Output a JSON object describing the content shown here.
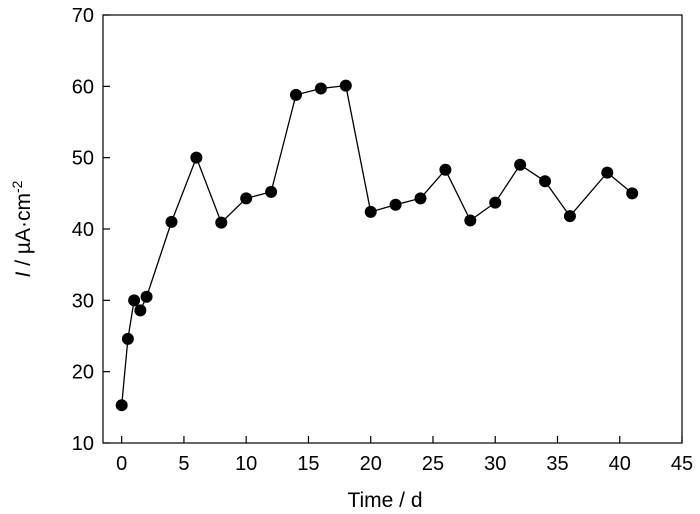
{
  "chart_data": {
    "type": "scatter",
    "title": "",
    "xlabel": "Time / d",
    "ylabel": {
      "symbol": "I",
      "rest": " / µA·cm",
      "sup": "-2"
    },
    "xlim": [
      -1.5,
      45
    ],
    "ylim": [
      10,
      70
    ],
    "xticks": [
      0,
      5,
      10,
      15,
      20,
      25,
      30,
      35,
      40,
      45
    ],
    "yticks": [
      10,
      20,
      30,
      40,
      50,
      60,
      70
    ],
    "grid": false,
    "legend": "none",
    "colors": {
      "marker": "#000000",
      "line": "#000000"
    },
    "series": [
      {
        "x": [
          0,
          0.5,
          1,
          1.5,
          2,
          4,
          6,
          8,
          10,
          12,
          14,
          16,
          18,
          20,
          22,
          24,
          26,
          28,
          30,
          32,
          34,
          36,
          39,
          41
        ],
        "y": [
          15.3,
          24.6,
          30.0,
          28.6,
          30.5,
          41.0,
          50.0,
          40.9,
          44.3,
          45.2,
          58.8,
          59.7,
          60.1,
          42.4,
          43.4,
          44.3,
          48.3,
          41.2,
          43.7,
          49.0,
          46.7,
          41.8,
          47.9,
          45.0
        ]
      }
    ]
  }
}
